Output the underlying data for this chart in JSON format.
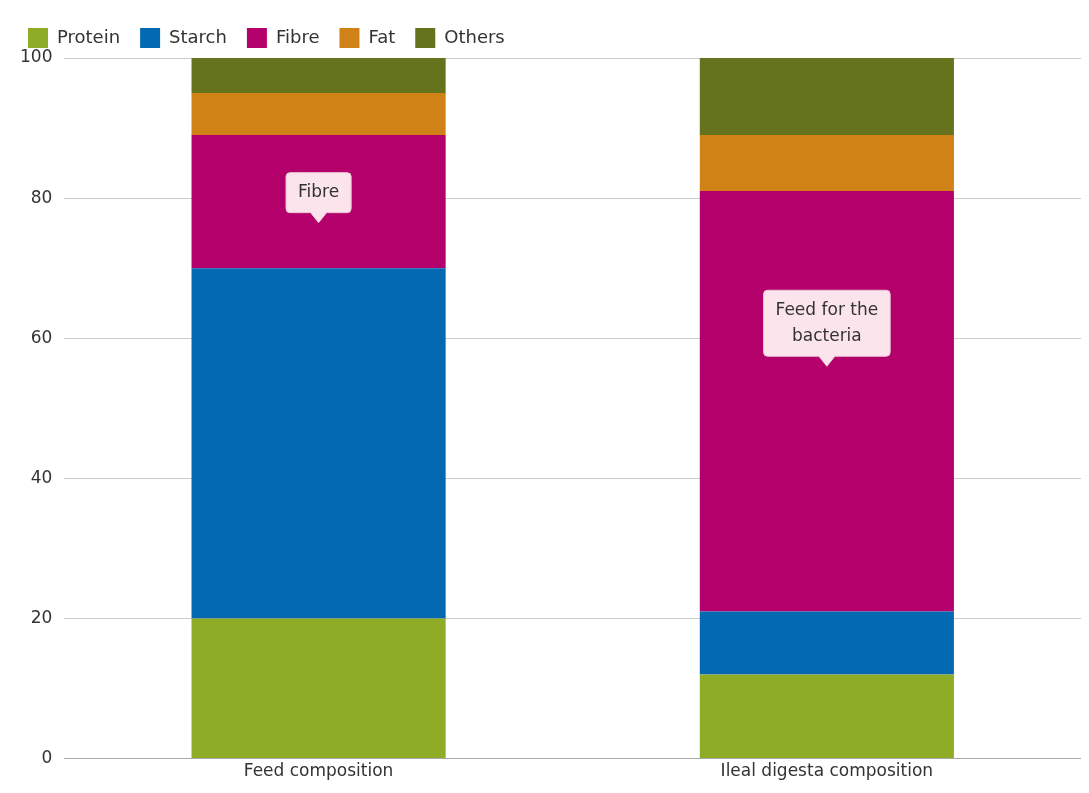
{
  "chart_data": {
    "type": "bar",
    "stacked": true,
    "categories": [
      "Feed composition",
      "Ileal digesta composition"
    ],
    "series": [
      {
        "name": "Protein",
        "color": "#8fac27",
        "values": [
          20,
          12
        ]
      },
      {
        "name": "Starch",
        "color": "#0469b3",
        "values": [
          50,
          9
        ]
      },
      {
        "name": "Fibre",
        "color": "#b3006b",
        "values": [
          19,
          60
        ]
      },
      {
        "name": "Fat",
        "color": "#d08216",
        "values": [
          6,
          8
        ]
      },
      {
        "name": "Others",
        "color": "#65741c",
        "values": [
          5,
          11
        ]
      }
    ],
    "ylim": [
      0,
      100
    ],
    "yticks": [
      0,
      20,
      40,
      60,
      80,
      100
    ],
    "grid": "y",
    "legend": "top left",
    "annotations": [
      "Fibre",
      "Feed for the bacteria"
    ]
  }
}
